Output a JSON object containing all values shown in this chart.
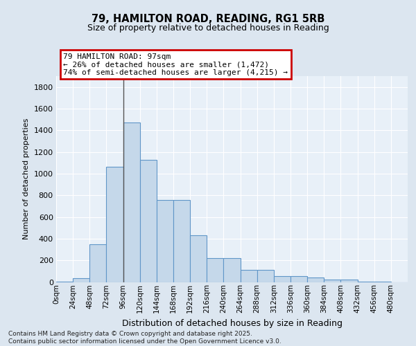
{
  "title1": "79, HAMILTON ROAD, READING, RG1 5RB",
  "title2": "Size of property relative to detached houses in Reading",
  "xlabel": "Distribution of detached houses by size in Reading",
  "ylabel": "Number of detached properties",
  "bar_color": "#c5d8ea",
  "bar_edge_color": "#6096c8",
  "annotation_text": "79 HAMILTON ROAD: 97sqm\n← 26% of detached houses are smaller (1,472)\n74% of semi-detached houses are larger (4,215) →",
  "annotation_box_color": "#cc0000",
  "vline_x": 96,
  "vline_color": "#555555",
  "bin_width": 24,
  "bin_starts": [
    0,
    24,
    48,
    72,
    96,
    120,
    144,
    168,
    192,
    216,
    240,
    264,
    288,
    312,
    336,
    360,
    384,
    408,
    432,
    456,
    480
  ],
  "bar_heights": [
    5,
    35,
    350,
    1065,
    1472,
    1130,
    760,
    760,
    430,
    220,
    220,
    110,
    110,
    55,
    55,
    40,
    20,
    20,
    5,
    5,
    0
  ],
  "ylim": [
    0,
    1900
  ],
  "yticks": [
    0,
    200,
    400,
    600,
    800,
    1000,
    1200,
    1400,
    1600,
    1800
  ],
  "footer_text": "Contains HM Land Registry data © Crown copyright and database right 2025.\nContains public sector information licensed under the Open Government Licence v3.0.",
  "bg_color": "#dce6f0",
  "plot_bg_color": "#e8f0f8",
  "grid_color": "#ffffff"
}
